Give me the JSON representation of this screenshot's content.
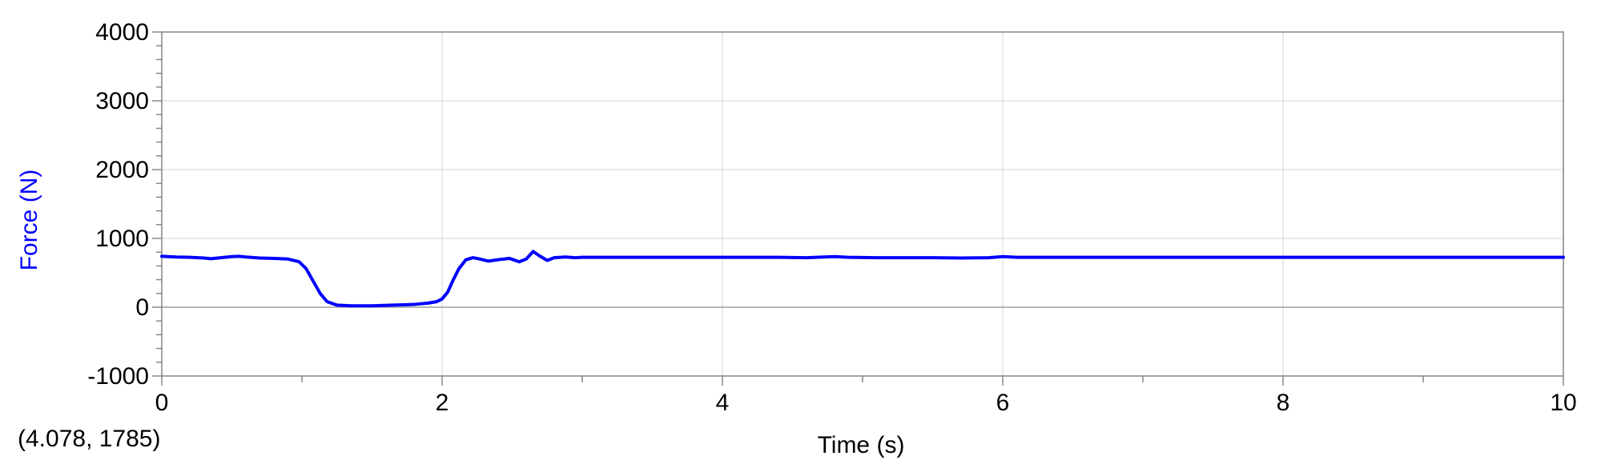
{
  "chart_data": {
    "type": "line",
    "xlabel": "Time (s)",
    "ylabel": "Force (N)",
    "xlim": [
      0,
      10
    ],
    "ylim": [
      -1000,
      4000
    ],
    "x_ticks": [
      0,
      2,
      4,
      6,
      8,
      10
    ],
    "x_tick_labels": [
      "0",
      "2",
      "4",
      "6",
      "8",
      "10"
    ],
    "x_gridlines": [
      0,
      2,
      4,
      6,
      8,
      10
    ],
    "x_minor_step": 1,
    "y_ticks": [
      -1000,
      0,
      1000,
      2000,
      3000,
      4000
    ],
    "y_tick_labels": [
      "-1000",
      "0",
      "1000",
      "2000",
      "3000",
      "4000"
    ],
    "y_minor_step": 200,
    "grid": true,
    "zero_line": true,
    "readout": "(4.078, 1785)",
    "colors": {
      "series": "#0000ff",
      "ylabel": "#0000ff",
      "grid": "#dcdcdc",
      "axis": "#808080",
      "zero_line": "#a0a0a0"
    },
    "series": [
      {
        "x": [
          0,
          0.1,
          0.2,
          0.3,
          0.35,
          0.4,
          0.5,
          0.55,
          0.6,
          0.7,
          0.8,
          0.9,
          0.98,
          1.03,
          1.08,
          1.13,
          1.18,
          1.25,
          1.35,
          1.5,
          1.65,
          1.8,
          1.9,
          1.96,
          2.0,
          2.04,
          2.08,
          2.12,
          2.17,
          2.22,
          2.27,
          2.33,
          2.4,
          2.48,
          2.55,
          2.6,
          2.65,
          2.7,
          2.75,
          2.8,
          2.88,
          2.95,
          3.0,
          3.4,
          3.6,
          4.0,
          4.4,
          4.6,
          4.8,
          4.9,
          5.1,
          5.5,
          5.7,
          5.9,
          6.0,
          6.1,
          6.2,
          7.0,
          8.0,
          9.0,
          10.0
        ],
        "y": [
          740,
          730,
          725,
          715,
          705,
          715,
          735,
          740,
          730,
          715,
          710,
          700,
          660,
          560,
          380,
          200,
          80,
          30,
          20,
          20,
          30,
          40,
          60,
          80,
          120,
          220,
          400,
          560,
          690,
          720,
          700,
          670,
          690,
          710,
          660,
          700,
          810,
          740,
          680,
          720,
          730,
          720,
          725,
          725,
          725,
          725,
          725,
          720,
          735,
          725,
          720,
          720,
          715,
          720,
          735,
          725,
          725,
          725,
          725,
          725,
          725
        ]
      }
    ]
  }
}
